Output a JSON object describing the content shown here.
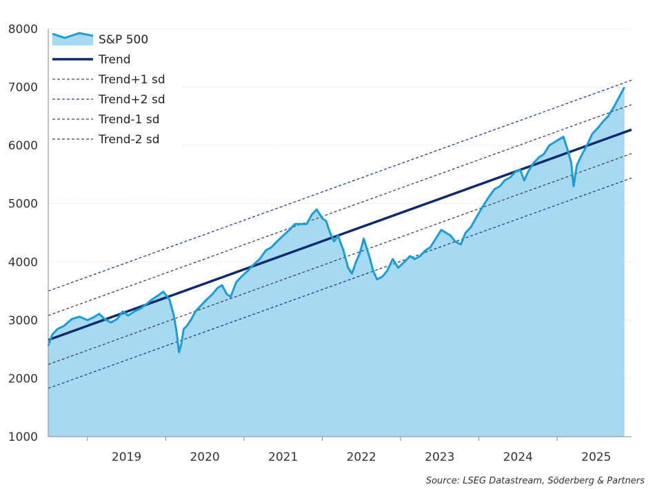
{
  "chart_data": {
    "type": "line",
    "title": "",
    "xlabel": "",
    "ylabel": "",
    "xlim": [
      2018.5,
      2025.95
    ],
    "ylim": [
      1000,
      8000
    ],
    "yticks": [
      1000,
      2000,
      3000,
      4000,
      5000,
      6000,
      7000,
      8000
    ],
    "xticks": [
      "2019",
      "2020",
      "2021",
      "2022",
      "2023",
      "2024",
      "2025"
    ],
    "grid": "horizontal dotted",
    "legend_position": "top-left",
    "colors": {
      "sp500_line": "#1a9cd8",
      "sp500_fill": "#a6daf2",
      "trend": "#0e2a6e",
      "sd1": "#444444",
      "sd2": "#1d3f8a"
    },
    "legend": [
      {
        "key": "sp500",
        "label": "S&P 500",
        "style": "area"
      },
      {
        "key": "trend",
        "label": "Trend",
        "style": "solid"
      },
      {
        "key": "plus1",
        "label": "Trend+1 sd",
        "style": "dash-dark"
      },
      {
        "key": "plus2",
        "label": "Trend+2 sd",
        "style": "dash-blue"
      },
      {
        "key": "minus1",
        "label": "Trend-1 sd",
        "style": "dash-dark"
      },
      {
        "key": "minus2",
        "label": "Trend-2 sd",
        "style": "dash-blue"
      }
    ],
    "trend_lines": {
      "trend": {
        "x": [
          2018.5,
          2025.95
        ],
        "y": [
          2660,
          6270
        ]
      },
      "plus1": {
        "x": [
          2018.5,
          2025.95
        ],
        "y": [
          3080,
          6700
        ]
      },
      "plus2": {
        "x": [
          2018.5,
          2025.95
        ],
        "y": [
          3500,
          7120
        ]
      },
      "minus1": {
        "x": [
          2018.5,
          2025.95
        ],
        "y": [
          2240,
          5860
        ]
      },
      "minus2": {
        "x": [
          2018.5,
          2025.95
        ],
        "y": [
          1830,
          5440
        ]
      }
    },
    "series": [
      {
        "name": "S&P 500",
        "x": [
          2018.5,
          2018.55,
          2018.62,
          2018.7,
          2018.8,
          2018.9,
          2019.0,
          2019.08,
          2019.15,
          2019.22,
          2019.3,
          2019.38,
          2019.45,
          2019.52,
          2019.6,
          2019.68,
          2019.75,
          2019.82,
          2019.9,
          2019.97,
          2020.05,
          2020.1,
          2020.14,
          2020.17,
          2020.2,
          2020.23,
          2020.27,
          2020.32,
          2020.38,
          2020.45,
          2020.52,
          2020.6,
          2020.66,
          2020.72,
          2020.78,
          2020.83,
          2020.9,
          2020.97,
          2021.05,
          2021.12,
          2021.2,
          2021.28,
          2021.35,
          2021.42,
          2021.5,
          2021.58,
          2021.65,
          2021.72,
          2021.8,
          2021.87,
          2021.93,
          2022.0,
          2022.05,
          2022.1,
          2022.15,
          2022.2,
          2022.27,
          2022.33,
          2022.38,
          2022.43,
          2022.48,
          2022.53,
          2022.6,
          2022.65,
          2022.7,
          2022.77,
          2022.83,
          2022.9,
          2022.97,
          2023.05,
          2023.12,
          2023.18,
          2023.25,
          2023.32,
          2023.38,
          2023.45,
          2023.52,
          2023.58,
          2023.64,
          2023.7,
          2023.77,
          2023.83,
          2023.9,
          2023.97,
          2024.05,
          2024.12,
          2024.2,
          2024.27,
          2024.33,
          2024.4,
          2024.47,
          2024.53,
          2024.58,
          2024.63,
          2024.7,
          2024.77,
          2024.83,
          2024.9,
          2024.96,
          2025.02,
          2025.08,
          2025.14,
          2025.18,
          2025.21,
          2025.25,
          2025.3,
          2025.38,
          2025.45,
          2025.52,
          2025.58,
          2025.65,
          2025.72,
          2025.78,
          2025.82,
          2025.86
        ],
        "values": [
          2560,
          2750,
          2850,
          2900,
          3020,
          3060,
          3000,
          3050,
          3110,
          3020,
          2960,
          3020,
          3150,
          3080,
          3150,
          3200,
          3270,
          3350,
          3420,
          3490,
          3350,
          3100,
          2800,
          2450,
          2600,
          2850,
          2900,
          3000,
          3150,
          3250,
          3350,
          3450,
          3550,
          3600,
          3450,
          3400,
          3650,
          3750,
          3850,
          3950,
          4050,
          4200,
          4250,
          4350,
          4450,
          4550,
          4650,
          4650,
          4650,
          4820,
          4900,
          4750,
          4700,
          4500,
          4350,
          4450,
          4200,
          3900,
          3800,
          4000,
          4150,
          4400,
          4100,
          3850,
          3700,
          3750,
          3850,
          4050,
          3900,
          4000,
          4100,
          4050,
          4100,
          4200,
          4250,
          4400,
          4550,
          4500,
          4450,
          4350,
          4300,
          4500,
          4600,
          4770,
          4950,
          5100,
          5250,
          5300,
          5400,
          5450,
          5550,
          5580,
          5400,
          5550,
          5700,
          5800,
          5850,
          6000,
          6050,
          6100,
          6150,
          5900,
          5700,
          5300,
          5650,
          5800,
          6000,
          6200,
          6300,
          6400,
          6500,
          6650,
          6800,
          6900,
          7000
        ]
      }
    ]
  },
  "source": "Source: LSEG Datastream, Söderberg & Partners"
}
